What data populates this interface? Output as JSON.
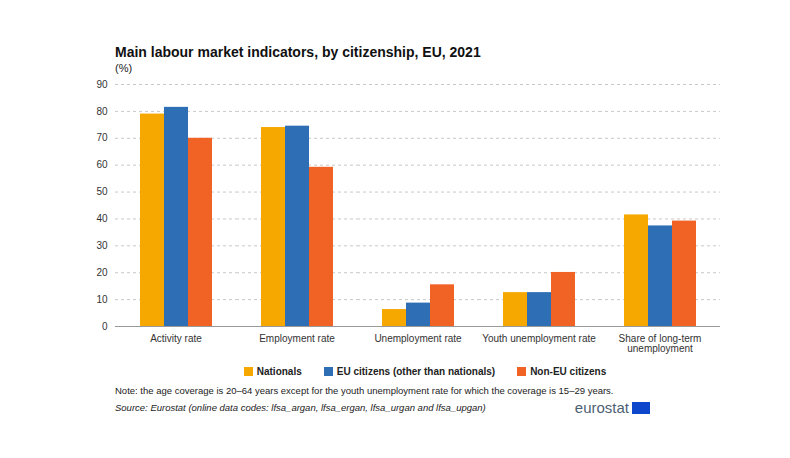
{
  "chart_data": {
    "type": "bar",
    "title": "Main labour market indicators, by citizenship, EU, 2021",
    "subtitle": "(%)",
    "categories": [
      "Activity rate",
      "Employment rate",
      "Unemployment rate",
      "Youth unemployment rate",
      "Share of long-term unemployment"
    ],
    "series": [
      {
        "name": "Nationals",
        "color": "#f6a800",
        "values": [
          79.0,
          74.0,
          6.3,
          12.6,
          41.5
        ]
      },
      {
        "name": "EU citizens (other than nationals)",
        "color": "#2e6eb5",
        "values": [
          81.5,
          74.5,
          8.7,
          12.6,
          37.4
        ]
      },
      {
        "name": "Non-EU citizens",
        "color": "#f06325",
        "values": [
          70.0,
          59.2,
          15.5,
          20.1,
          39.2
        ]
      }
    ],
    "ylim": [
      0,
      90
    ],
    "yticks": [
      0,
      10,
      20,
      30,
      40,
      50,
      60,
      70,
      80,
      90
    ],
    "grid": true,
    "legend": "bottom",
    "note": "Note: the age coverage is 20–64 years except for the youth unemployment rate for which the coverage is 15–29 years.",
    "source": "Source: Eurostat (online data codes: lfsa_argan, lfsa_ergan, lfsa_urgan and lfsa_upgan)",
    "logo_text": "eurostat"
  }
}
